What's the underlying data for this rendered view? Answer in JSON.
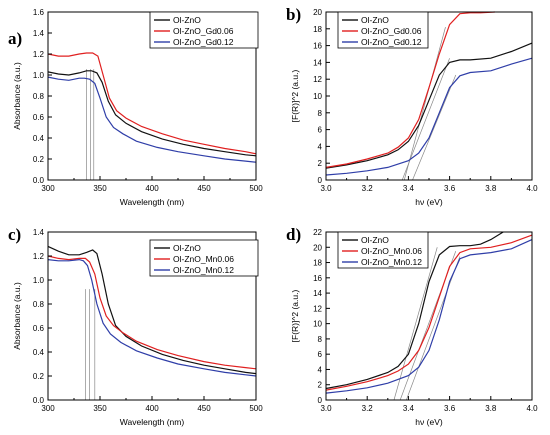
{
  "colors": {
    "black": "#111111",
    "red": "#e02020",
    "blue": "#2f3ea8",
    "guide": "#888888"
  },
  "chart_data": [
    {
      "panel": "a)",
      "type": "line",
      "xlabel": "Wavelength (nm)",
      "ylabel": "Absorbance (a.u.)",
      "xlim": [
        300,
        500
      ],
      "ylim": [
        0,
        1.6
      ],
      "xticks": [
        300,
        350,
        400,
        450,
        500
      ],
      "yticks": [
        0.0,
        0.2,
        0.4,
        0.6,
        0.8,
        1.0,
        1.2,
        1.4,
        1.6
      ],
      "xtick_labels": [
        "300",
        "350",
        "400",
        "450",
        "500"
      ],
      "ytick_labels": [
        "0.0",
        "0.2",
        "0.4",
        "0.6",
        "0.8",
        "1.0",
        "1.2",
        "1.4",
        "1.6"
      ],
      "legend_position": "top-right",
      "series": [
        {
          "name": "Ol-ZnO",
          "color": "#111111",
          "x": [
            300,
            310,
            320,
            330,
            337,
            342,
            347,
            352,
            358,
            365,
            375,
            390,
            410,
            430,
            450,
            470,
            490,
            500
          ],
          "y": [
            1.03,
            1.01,
            1.0,
            1.02,
            1.04,
            1.04,
            1.02,
            0.93,
            0.75,
            0.62,
            0.54,
            0.46,
            0.39,
            0.34,
            0.3,
            0.27,
            0.24,
            0.23
          ]
        },
        {
          "name": "Ol-ZnO_Gd0.06",
          "color": "#e02020",
          "x": [
            300,
            310,
            320,
            330,
            337,
            343,
            348,
            353,
            359,
            366,
            375,
            390,
            410,
            430,
            450,
            470,
            490,
            500
          ],
          "y": [
            1.2,
            1.18,
            1.18,
            1.2,
            1.21,
            1.21,
            1.18,
            1.0,
            0.78,
            0.66,
            0.59,
            0.51,
            0.44,
            0.38,
            0.34,
            0.3,
            0.27,
            0.25
          ]
        },
        {
          "name": "Ol-ZnO_Gd0.12",
          "color": "#2f3ea8",
          "x": [
            300,
            310,
            320,
            330,
            335,
            340,
            345,
            350,
            356,
            363,
            372,
            385,
            405,
            425,
            450,
            470,
            490,
            500
          ],
          "y": [
            0.98,
            0.96,
            0.95,
            0.97,
            0.97,
            0.96,
            0.92,
            0.78,
            0.6,
            0.5,
            0.44,
            0.37,
            0.31,
            0.27,
            0.23,
            0.2,
            0.18,
            0.17
          ]
        }
      ],
      "guides": [
        {
          "x": 337
        },
        {
          "x": 341
        },
        {
          "x": 344
        }
      ]
    },
    {
      "panel": "b)",
      "type": "line",
      "xlabel": "hν (eV)",
      "ylabel": "[F(R)]^2 (a.u.)",
      "xlim": [
        3.0,
        4.0
      ],
      "ylim": [
        0,
        20
      ],
      "xticks": [
        3.0,
        3.2,
        3.4,
        3.6,
        3.8,
        4.0
      ],
      "yticks": [
        0,
        2,
        4,
        6,
        8,
        10,
        12,
        14,
        16,
        18,
        20
      ],
      "xtick_labels": [
        "3.0",
        "3.2",
        "3.4",
        "3.6",
        "3.8",
        "4.0"
      ],
      "ytick_labels": [
        "0",
        "2",
        "4",
        "6",
        "8",
        "10",
        "12",
        "14",
        "16",
        "18",
        "20"
      ],
      "legend_position": "top-left",
      "series": [
        {
          "name": "Ol-ZnO",
          "color": "#111111",
          "x": [
            3.0,
            3.1,
            3.2,
            3.3,
            3.35,
            3.4,
            3.45,
            3.5,
            3.55,
            3.6,
            3.65,
            3.7,
            3.8,
            3.9,
            4.0
          ],
          "y": [
            1.4,
            1.8,
            2.3,
            3.0,
            3.6,
            4.6,
            6.5,
            9.5,
            12.5,
            14.0,
            14.3,
            14.3,
            14.5,
            15.3,
            16.3
          ]
        },
        {
          "name": "Ol-ZnO_Gd0.06",
          "color": "#e02020",
          "x": [
            3.0,
            3.1,
            3.2,
            3.3,
            3.35,
            3.4,
            3.45,
            3.5,
            3.55,
            3.6,
            3.65,
            3.7,
            3.75,
            3.82
          ],
          "y": [
            1.5,
            1.9,
            2.5,
            3.2,
            3.9,
            5.0,
            7.2,
            11.0,
            15.0,
            18.5,
            19.8,
            19.9,
            19.9,
            20.0
          ]
        },
        {
          "name": "Ol-ZnO_Gd0.12",
          "color": "#2f3ea8",
          "x": [
            3.0,
            3.1,
            3.2,
            3.3,
            3.4,
            3.45,
            3.5,
            3.55,
            3.6,
            3.65,
            3.7,
            3.8,
            3.9,
            4.0
          ],
          "y": [
            0.6,
            0.8,
            1.1,
            1.5,
            2.3,
            3.2,
            5.0,
            8.0,
            11.0,
            12.4,
            12.8,
            13.0,
            13.8,
            14.5
          ]
        }
      ],
      "guides": [
        {
          "x": [
            3.37,
            3.6
          ],
          "y": [
            0,
            14.5
          ]
        },
        {
          "x": [
            3.38,
            3.58
          ],
          "y": [
            0,
            18.2
          ]
        },
        {
          "x": [
            3.42,
            3.63
          ],
          "y": [
            0,
            12.5
          ]
        }
      ]
    },
    {
      "panel": "c)",
      "type": "line",
      "xlabel": "Wavelength (nm)",
      "ylabel": "Absorbance (a.u.)",
      "xlim": [
        300,
        500
      ],
      "ylim": [
        0,
        1.4
      ],
      "xticks": [
        300,
        350,
        400,
        450,
        500
      ],
      "yticks": [
        0.0,
        0.2,
        0.4,
        0.6,
        0.8,
        1.0,
        1.2,
        1.4
      ],
      "xtick_labels": [
        "300",
        "350",
        "400",
        "450",
        "500"
      ],
      "ytick_labels": [
        "0.0",
        "0.2",
        "0.4",
        "0.6",
        "0.8",
        "1.0",
        "1.2",
        "1.4"
      ],
      "legend_position": "top-right",
      "series": [
        {
          "name": "Ol-ZnO",
          "color": "#111111",
          "x": [
            300,
            310,
            320,
            330,
            337,
            343,
            347,
            352,
            358,
            365,
            375,
            390,
            410,
            430,
            450,
            470,
            490,
            500
          ],
          "y": [
            1.28,
            1.24,
            1.21,
            1.21,
            1.23,
            1.25,
            1.22,
            1.05,
            0.8,
            0.62,
            0.53,
            0.45,
            0.38,
            0.33,
            0.29,
            0.26,
            0.23,
            0.22
          ]
        },
        {
          "name": "Ol-ZnO_Mn0.06",
          "color": "#e02020",
          "x": [
            300,
            310,
            320,
            330,
            336,
            340,
            345,
            350,
            356,
            363,
            372,
            385,
            405,
            425,
            450,
            470,
            490,
            500
          ],
          "y": [
            1.2,
            1.18,
            1.17,
            1.18,
            1.18,
            1.15,
            1.05,
            0.85,
            0.7,
            0.62,
            0.56,
            0.49,
            0.42,
            0.37,
            0.32,
            0.29,
            0.27,
            0.26
          ]
        },
        {
          "name": "Ol-ZnO_Mn0.12",
          "color": "#2f3ea8",
          "x": [
            300,
            310,
            320,
            330,
            334,
            338,
            342,
            347,
            353,
            360,
            370,
            385,
            405,
            425,
            450,
            470,
            490,
            500
          ],
          "y": [
            1.17,
            1.16,
            1.16,
            1.17,
            1.16,
            1.12,
            1.0,
            0.8,
            0.64,
            0.55,
            0.48,
            0.41,
            0.35,
            0.3,
            0.26,
            0.23,
            0.21,
            0.2
          ]
        }
      ],
      "guides": [
        {
          "x": 336
        },
        {
          "x": 340
        },
        {
          "x": 345
        }
      ]
    },
    {
      "panel": "d)",
      "type": "line",
      "xlabel": "hν (eV)",
      "ylabel": "[F(R)]^2 (a.u.)",
      "xlim": [
        3.0,
        4.0
      ],
      "ylim": [
        0,
        22
      ],
      "xticks": [
        3.0,
        3.2,
        3.4,
        3.6,
        3.8,
        4.0
      ],
      "yticks": [
        0,
        2,
        4,
        6,
        8,
        10,
        12,
        14,
        16,
        18,
        20,
        22
      ],
      "xtick_labels": [
        "3.0",
        "3.2",
        "3.4",
        "3.6",
        "3.8",
        "4.0"
      ],
      "ytick_labels": [
        "0",
        "2",
        "4",
        "6",
        "8",
        "10",
        "12",
        "14",
        "16",
        "18",
        "20",
        "22"
      ],
      "legend_position": "top-left",
      "series": [
        {
          "name": "Ol-ZnO",
          "color": "#111111",
          "x": [
            3.0,
            3.1,
            3.2,
            3.3,
            3.35,
            3.4,
            3.45,
            3.5,
            3.55,
            3.6,
            3.65,
            3.7,
            3.75,
            3.8,
            3.86
          ],
          "y": [
            1.5,
            2.0,
            2.7,
            3.6,
            4.4,
            6.0,
            10.0,
            15.5,
            19.0,
            20.1,
            20.2,
            20.2,
            20.4,
            21.0,
            22.0
          ]
        },
        {
          "name": "Ol-ZnO_Mn0.06",
          "color": "#e02020",
          "x": [
            3.0,
            3.1,
            3.2,
            3.3,
            3.35,
            3.4,
            3.45,
            3.5,
            3.55,
            3.6,
            3.65,
            3.7,
            3.8,
            3.9,
            4.0
          ],
          "y": [
            1.3,
            1.8,
            2.4,
            3.2,
            3.8,
            4.7,
            6.5,
            9.5,
            13.5,
            17.5,
            19.3,
            19.8,
            20.0,
            20.6,
            21.6
          ]
        },
        {
          "name": "Ol-ZnO_Mn0.12",
          "color": "#2f3ea8",
          "x": [
            3.0,
            3.1,
            3.2,
            3.3,
            3.4,
            3.45,
            3.5,
            3.55,
            3.6,
            3.65,
            3.7,
            3.8,
            3.9,
            4.0
          ],
          "y": [
            0.9,
            1.2,
            1.6,
            2.2,
            3.2,
            4.3,
            6.5,
            10.5,
            15.5,
            18.5,
            19.0,
            19.3,
            19.8,
            21.0
          ]
        }
      ],
      "guides": [
        {
          "x": [
            3.33,
            3.54
          ],
          "y": [
            0,
            20
          ]
        },
        {
          "x": [
            3.36,
            3.63
          ],
          "y": [
            0,
            19.5
          ]
        },
        {
          "x": [
            3.39,
            3.65
          ],
          "y": [
            0,
            18.8
          ]
        }
      ]
    }
  ]
}
